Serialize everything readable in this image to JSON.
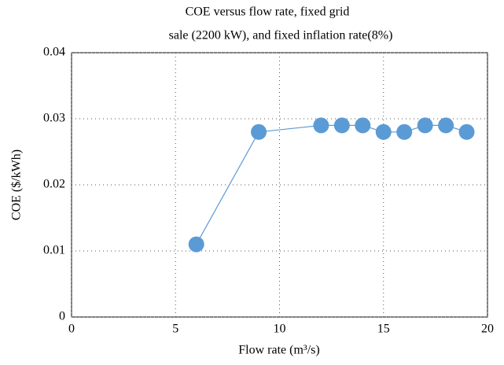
{
  "chart_data": {
    "type": "line",
    "title": [
      "COE versus flow rate, fixed grid",
      "sale (2200 kW), and fixed inflation rate(8%)"
    ],
    "x_label": "Flow rate (m³/s)",
    "y_label": "COE ($/kWh)",
    "x": [
      6,
      9,
      12,
      13,
      14,
      15,
      16,
      17,
      18,
      19
    ],
    "series": [
      {
        "color": "#5b9bd5",
        "values": [
          0.011,
          0.028,
          0.029,
          0.029,
          0.029,
          0.028,
          0.028,
          0.029,
          0.029,
          0.028
        ]
      }
    ],
    "xlim": [
      0,
      20
    ],
    "xticks": [
      0,
      5,
      10,
      15,
      20
    ],
    "ylim": [
      0,
      0.04
    ],
    "yticks": [
      0,
      0.01,
      0.02,
      0.03,
      0.04
    ],
    "grid": true
  }
}
